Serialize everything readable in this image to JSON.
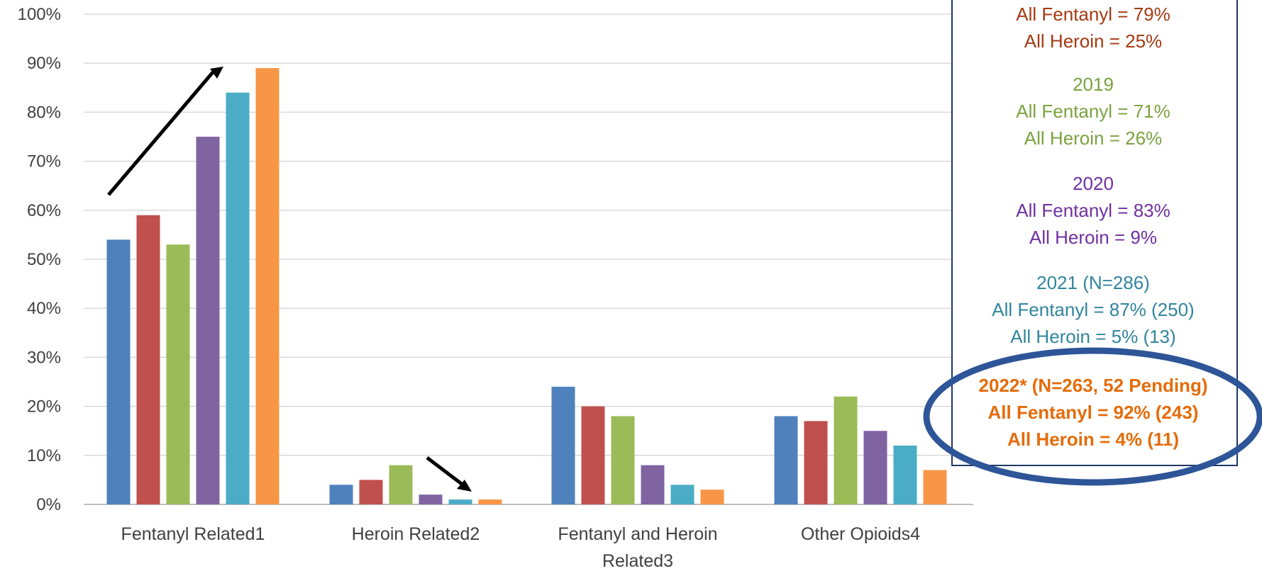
{
  "chart_data": {
    "type": "bar",
    "categories": [
      "Fentanyl Related1",
      "Heroin Related2",
      "Fentanyl and Heroin Related3",
      "Other Opioids4"
    ],
    "series": [
      {
        "color": "#4F81BD",
        "values": [
          54,
          4,
          24,
          18
        ]
      },
      {
        "color": "#C0504D",
        "values": [
          59,
          5,
          20,
          17
        ]
      },
      {
        "color": "#9BBB59",
        "values": [
          53,
          8,
          18,
          22
        ]
      },
      {
        "color": "#8064A2",
        "values": [
          75,
          2,
          8,
          15
        ]
      },
      {
        "color": "#4BACC6",
        "values": [
          84,
          1,
          4,
          12
        ]
      },
      {
        "color": "#F79646",
        "values": [
          89,
          1,
          3,
          7
        ]
      }
    ],
    "y_ticks": [
      "0%",
      "10%",
      "20%",
      "30%",
      "40%",
      "50%",
      "60%",
      "70%",
      "80%",
      "90%",
      "100%"
    ],
    "ylim": [
      0,
      100
    ],
    "grid": true,
    "title": "",
    "xlabel": "",
    "ylabel": ""
  },
  "annotations": {
    "y2018": {
      "color": "#A33A12",
      "lines": [
        "All Fentanyl = 79%",
        "All Heroin = 25%"
      ]
    },
    "y2019": {
      "color": "#7BA23F",
      "lines": [
        "2019",
        "All Fentanyl = 71%",
        "All Heroin = 26%"
      ]
    },
    "y2020": {
      "color": "#7030A0",
      "lines": [
        "2020",
        "All Fentanyl = 83%",
        "All Heroin = 9%"
      ]
    },
    "y2021": {
      "color": "#31859C",
      "lines": [
        "2021 (N=286)",
        "All Fentanyl = 87% (250)",
        "All Heroin = 5% (13)"
      ]
    },
    "y2022": {
      "color": "#E46C0A",
      "lines": [
        "2022* (N=263, 52 Pending)",
        "All Fentanyl = 92% (243)",
        "All Heroin = 4% (11)"
      ]
    },
    "highlight_color": "#2E5597",
    "box_border_color": "#1F3864"
  }
}
